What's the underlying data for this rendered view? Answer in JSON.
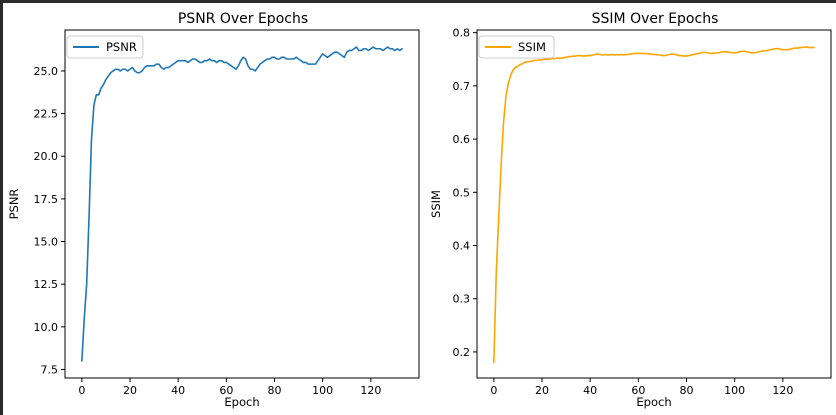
{
  "chart_data": [
    {
      "type": "line",
      "title": "PSNR Over Epochs",
      "xlabel": "Epoch",
      "ylabel": "PSNR",
      "xlim": [
        -7,
        140
      ],
      "ylim": [
        7.0,
        27.4
      ],
      "xticks": [
        0,
        20,
        40,
        60,
        80,
        100,
        120
      ],
      "yticks": [
        7.5,
        10.0,
        12.5,
        15.0,
        17.5,
        20.0,
        22.5,
        25.0
      ],
      "legend_position": "upper-left",
      "grid": false,
      "series": [
        {
          "name": "PSNR",
          "color": "#1f77b4",
          "x": [
            0,
            1,
            2,
            3,
            4,
            5,
            6,
            7,
            8,
            9,
            10,
            11,
            12,
            13,
            14,
            15,
            16,
            17,
            18,
            19,
            20,
            21,
            22,
            23,
            24,
            25,
            26,
            27,
            28,
            29,
            30,
            31,
            32,
            33,
            34,
            35,
            36,
            37,
            38,
            39,
            40,
            41,
            42,
            43,
            44,
            45,
            46,
            47,
            48,
            49,
            50,
            51,
            52,
            53,
            54,
            55,
            56,
            57,
            58,
            59,
            60,
            61,
            62,
            63,
            64,
            65,
            66,
            67,
            68,
            69,
            70,
            71,
            72,
            73,
            74,
            75,
            76,
            77,
            78,
            79,
            80,
            81,
            82,
            83,
            84,
            85,
            86,
            87,
            88,
            89,
            90,
            91,
            92,
            93,
            94,
            95,
            96,
            97,
            98,
            99,
            100,
            101,
            102,
            103,
            104,
            105,
            106,
            107,
            108,
            109,
            110,
            111,
            112,
            113,
            114,
            115,
            116,
            117,
            118,
            119,
            120,
            121,
            122,
            123,
            124,
            125,
            126,
            127,
            128,
            129,
            130,
            131,
            132,
            133
          ],
          "values": [
            8.0,
            10.5,
            12.5,
            16.5,
            21.0,
            23.0,
            23.6,
            23.6,
            24.0,
            24.2,
            24.5,
            24.7,
            24.9,
            25.0,
            25.1,
            25.1,
            25.0,
            25.1,
            25.1,
            25.0,
            25.1,
            25.2,
            25.0,
            24.9,
            24.9,
            25.0,
            25.2,
            25.3,
            25.3,
            25.3,
            25.3,
            25.4,
            25.4,
            25.2,
            25.1,
            25.2,
            25.2,
            25.3,
            25.4,
            25.5,
            25.6,
            25.6,
            25.6,
            25.6,
            25.5,
            25.6,
            25.7,
            25.7,
            25.6,
            25.5,
            25.5,
            25.6,
            25.6,
            25.7,
            25.6,
            25.6,
            25.5,
            25.6,
            25.6,
            25.5,
            25.5,
            25.4,
            25.3,
            25.2,
            25.1,
            25.3,
            25.6,
            25.8,
            25.7,
            25.3,
            25.1,
            25.1,
            25.0,
            25.2,
            25.4,
            25.5,
            25.6,
            25.7,
            25.7,
            25.8,
            25.8,
            25.7,
            25.7,
            25.8,
            25.8,
            25.7,
            25.7,
            25.7,
            25.7,
            25.8,
            25.7,
            25.6,
            25.5,
            25.5,
            25.4,
            25.4,
            25.4,
            25.4,
            25.6,
            25.8,
            26.0,
            25.9,
            25.8,
            25.9,
            26.0,
            26.1,
            26.1,
            26.0,
            25.9,
            25.8,
            26.1,
            26.2,
            26.2,
            26.3,
            26.4,
            26.2,
            26.2,
            26.3,
            26.3,
            26.2,
            26.3,
            26.4,
            26.3,
            26.3,
            26.3,
            26.2,
            26.3,
            26.4,
            26.3,
            26.3,
            26.2,
            26.3,
            26.2,
            26.3
          ]
        }
      ]
    },
    {
      "type": "line",
      "title": "SSIM Over Epochs",
      "xlabel": "Epoch",
      "ylabel": "SSIM",
      "xlim": [
        -7,
        140
      ],
      "ylim": [
        0.151,
        0.805
      ],
      "xticks": [
        0,
        20,
        40,
        60,
        80,
        100,
        120
      ],
      "yticks": [
        0.2,
        0.3,
        0.4,
        0.5,
        0.6,
        0.7,
        0.8
      ],
      "legend_position": "upper-left",
      "grid": false,
      "series": [
        {
          "name": "SSIM",
          "color": "#ffa500",
          "x": [
            0,
            1,
            2,
            3,
            4,
            5,
            6,
            7,
            8,
            9,
            10,
            11,
            12,
            13,
            14,
            15,
            16,
            17,
            18,
            19,
            20,
            21,
            22,
            23,
            24,
            25,
            26,
            27,
            28,
            29,
            30,
            31,
            32,
            33,
            34,
            35,
            36,
            37,
            38,
            39,
            40,
            41,
            42,
            43,
            44,
            45,
            46,
            47,
            48,
            49,
            50,
            51,
            52,
            53,
            54,
            55,
            56,
            57,
            58,
            59,
            60,
            61,
            62,
            63,
            64,
            65,
            66,
            67,
            68,
            69,
            70,
            71,
            72,
            73,
            74,
            75,
            76,
            77,
            78,
            79,
            80,
            81,
            82,
            83,
            84,
            85,
            86,
            87,
            88,
            89,
            90,
            91,
            92,
            93,
            94,
            95,
            96,
            97,
            98,
            99,
            100,
            101,
            102,
            103,
            104,
            105,
            106,
            107,
            108,
            109,
            110,
            111,
            112,
            113,
            114,
            115,
            116,
            117,
            118,
            119,
            120,
            121,
            122,
            123,
            124,
            125,
            126,
            127,
            128,
            129,
            130,
            131,
            132,
            133
          ],
          "values": [
            0.18,
            0.35,
            0.45,
            0.55,
            0.63,
            0.68,
            0.705,
            0.72,
            0.73,
            0.735,
            0.737,
            0.74,
            0.742,
            0.745,
            0.745,
            0.746,
            0.747,
            0.748,
            0.748,
            0.749,
            0.749,
            0.75,
            0.75,
            0.75,
            0.751,
            0.751,
            0.752,
            0.752,
            0.752,
            0.753,
            0.754,
            0.755,
            0.755,
            0.756,
            0.756,
            0.757,
            0.757,
            0.756,
            0.756,
            0.757,
            0.757,
            0.758,
            0.759,
            0.76,
            0.759,
            0.758,
            0.759,
            0.758,
            0.758,
            0.759,
            0.758,
            0.759,
            0.758,
            0.759,
            0.758,
            0.759,
            0.759,
            0.76,
            0.761,
            0.761,
            0.761,
            0.761,
            0.761,
            0.761,
            0.76,
            0.76,
            0.759,
            0.759,
            0.758,
            0.758,
            0.757,
            0.757,
            0.758,
            0.759,
            0.76,
            0.759,
            0.758,
            0.757,
            0.757,
            0.756,
            0.756,
            0.757,
            0.758,
            0.759,
            0.76,
            0.761,
            0.762,
            0.763,
            0.763,
            0.762,
            0.761,
            0.761,
            0.762,
            0.762,
            0.763,
            0.764,
            0.764,
            0.764,
            0.763,
            0.762,
            0.762,
            0.763,
            0.764,
            0.765,
            0.765,
            0.764,
            0.763,
            0.762,
            0.762,
            0.763,
            0.764,
            0.765,
            0.766,
            0.766,
            0.767,
            0.768,
            0.769,
            0.77,
            0.77,
            0.769,
            0.768,
            0.768,
            0.768,
            0.769,
            0.77,
            0.771,
            0.771,
            0.772,
            0.772,
            0.773,
            0.773,
            0.772,
            0.772,
            0.772
          ]
        }
      ]
    }
  ]
}
